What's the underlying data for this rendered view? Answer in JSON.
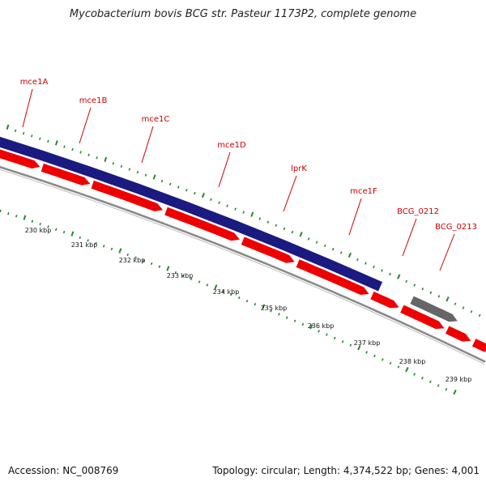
{
  "map": {
    "title": "Mycobacterium bovis BCG str. Pasteur 1173P2, complete genome",
    "accession_text": "Accession: NC_008769",
    "topology_text": "Topology: circular; Length: 4,374,522 bp; Genes: 4,001"
  },
  "colors": {
    "forward_strand": "#1a1a80",
    "reverse_cds": "#ee0000",
    "other_gene": "#666666",
    "backbone": "#888888",
    "tick": "#22882a",
    "gene_label": "#cc0000"
  },
  "gene_labels": [
    "mce1A",
    "mce1B",
    "mce1C",
    "mce1D",
    "lprK",
    "mce1F",
    "BCG_0212",
    "BCG_0213"
  ],
  "tick_labels": [
    "230 kbp",
    "231 kbp",
    "232 kbp",
    "233 kbp",
    "234 kbp",
    "235 kbp",
    "236 kbp",
    "237 kbp",
    "238 kbp",
    "239 kbp"
  ]
}
